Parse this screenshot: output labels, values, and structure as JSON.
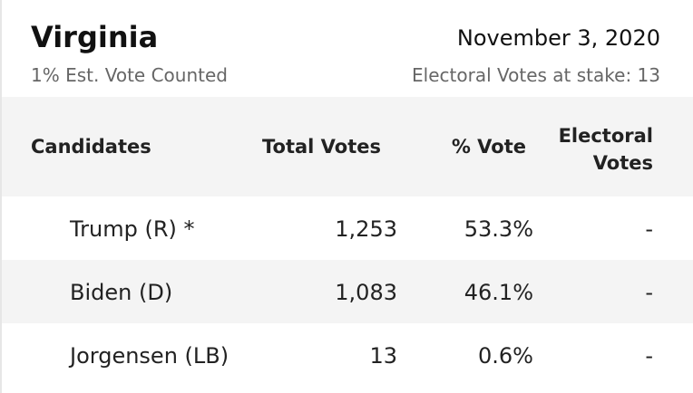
{
  "header": {
    "state": "Virginia",
    "date": "November 3, 2020",
    "counted": "1% Est. Vote Counted",
    "electoral_stake": "Electoral Votes at stake: 13"
  },
  "table": {
    "columns": [
      "Candidates",
      "Total Votes",
      "% Vote",
      "Electoral Votes"
    ],
    "rows": [
      [
        "Trump (R) *",
        "1,253",
        "53.3%",
        "-"
      ],
      [
        "Biden (D)",
        "1,083",
        "46.1%",
        "-"
      ],
      [
        "Jorgensen (LB)",
        "13",
        "0.6%",
        "-"
      ]
    ]
  }
}
